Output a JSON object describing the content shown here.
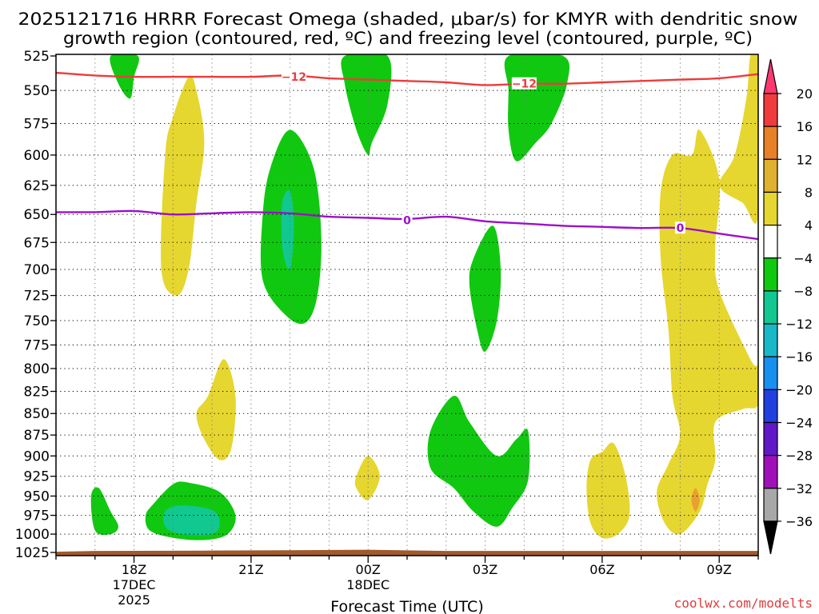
{
  "chart_data": {
    "type": "contour",
    "title_line1": "2025121716 HRRR Forecast Omega (shaded, μbar/s) for KMYR with dendritic snow",
    "title_line2": "growth region (contoured, red, ºC) and freezing level (contoured, purple, ºC)",
    "xlabel": "Forecast Time (UTC)",
    "credit": "coolwx.com/modelts",
    "x_ticks": [
      {
        "hour": 18,
        "label": "18Z",
        "sub1": "17DEC",
        "sub2": "2025"
      },
      {
        "hour": 21,
        "label": "21Z",
        "sub1": "",
        "sub2": ""
      },
      {
        "hour": 24,
        "label": "00Z",
        "sub1": "18DEC",
        "sub2": ""
      },
      {
        "hour": 27,
        "label": "03Z",
        "sub1": "",
        "sub2": ""
      },
      {
        "hour": 30,
        "label": "06Z",
        "sub1": "",
        "sub2": ""
      },
      {
        "hour": 33,
        "label": "09Z",
        "sub1": "",
        "sub2": ""
      }
    ],
    "x_range": [
      16,
      34
    ],
    "pressure_levels": [
      525,
      550,
      575,
      600,
      625,
      650,
      675,
      700,
      725,
      750,
      775,
      800,
      825,
      850,
      875,
      900,
      925,
      950,
      975,
      1000,
      1025
    ],
    "colorbar": {
      "labels": [
        "20",
        "16",
        "12",
        "8",
        "4",
        "−4",
        "−8",
        "−12",
        "−16",
        "−20",
        "−24",
        "−28",
        "−32",
        "−36"
      ],
      "colors": [
        "#ff3870",
        "#f03c3c",
        "#e88028",
        "#e0b030",
        "#e6d630",
        "#ffffff",
        "#10c810",
        "#10c890",
        "#18b8c8",
        "#1890f0",
        "#2040e0",
        "#6018c8",
        "#a010b8",
        "#a8a8a8"
      ]
    },
    "contours": [
      {
        "name": "dendritic -12C",
        "color": "#ec3c3c",
        "label": "−12",
        "points": [
          [
            16,
            537
          ],
          [
            17,
            539
          ],
          [
            18,
            540
          ],
          [
            19,
            540
          ],
          [
            20,
            540
          ],
          [
            21,
            540
          ],
          [
            22,
            539
          ],
          [
            23,
            541
          ],
          [
            24,
            542
          ],
          [
            25,
            543
          ],
          [
            26,
            544
          ],
          [
            27,
            546
          ],
          [
            28,
            545
          ],
          [
            29,
            545
          ],
          [
            30,
            544
          ],
          [
            31,
            543
          ],
          [
            32,
            542
          ],
          [
            33,
            541
          ],
          [
            34,
            538
          ]
        ],
        "label_positions": [
          [
            22.1,
            540
          ],
          [
            28,
            545
          ]
        ]
      },
      {
        "name": "freezing level 0C",
        "color": "#9c10c8",
        "label": "0",
        "points": [
          [
            16,
            648
          ],
          [
            17,
            648
          ],
          [
            18,
            647
          ],
          [
            19,
            650
          ],
          [
            20,
            649
          ],
          [
            21,
            648
          ],
          [
            22,
            649
          ],
          [
            23,
            652
          ],
          [
            24,
            653
          ],
          [
            25,
            654
          ],
          [
            26,
            652
          ],
          [
            27,
            656
          ],
          [
            28,
            658
          ],
          [
            29,
            660
          ],
          [
            30,
            661
          ],
          [
            31,
            662
          ],
          [
            32,
            662
          ],
          [
            33,
            667
          ],
          [
            34,
            672
          ]
        ],
        "label_positions": [
          [
            25,
            655
          ],
          [
            32,
            662
          ]
        ]
      }
    ],
    "regions": [
      {
        "value": 5,
        "color": "#e6d630",
        "points": [
          [
            19.0,
            570
          ],
          [
            19.4,
            540
          ],
          [
            19.6,
            550
          ],
          [
            19.8,
            590
          ],
          [
            19.6,
            640
          ],
          [
            19.4,
            700
          ],
          [
            19.1,
            725
          ],
          [
            18.7,
            700
          ],
          [
            18.8,
            600
          ]
        ]
      },
      {
        "value": 5,
        "color": "#e6d630",
        "points": [
          [
            19.9,
            830
          ],
          [
            20.3,
            790
          ],
          [
            20.6,
            830
          ],
          [
            20.5,
            890
          ],
          [
            20.2,
            905
          ],
          [
            19.8,
            880
          ],
          [
            19.6,
            850
          ]
        ]
      },
      {
        "value": 5,
        "color": "#e6d630",
        "points": [
          [
            23.7,
            925
          ],
          [
            24.0,
            900
          ],
          [
            24.3,
            925
          ],
          [
            24.0,
            955
          ],
          [
            23.7,
            940
          ]
        ]
      },
      {
        "value": 5,
        "color": "#e6d630",
        "points": [
          [
            30.0,
            895
          ],
          [
            30.3,
            885
          ],
          [
            30.6,
            925
          ],
          [
            30.7,
            975
          ],
          [
            30.4,
            1000
          ],
          [
            30.0,
            1005
          ],
          [
            29.7,
            985
          ],
          [
            29.6,
            940
          ],
          [
            29.7,
            905
          ]
        ]
      },
      {
        "value": 5,
        "color": "#e6d630",
        "points": [
          [
            32.3,
            600
          ],
          [
            32.5,
            580
          ],
          [
            33.0,
            620
          ],
          [
            32.9,
            680
          ],
          [
            33.0,
            720
          ],
          [
            33.8,
            790
          ],
          [
            34.0,
            800
          ],
          [
            34.0,
            840
          ],
          [
            33.6,
            845
          ],
          [
            32.9,
            860
          ],
          [
            32.9,
            905
          ],
          [
            32.7,
            935
          ],
          [
            32.5,
            970
          ],
          [
            32.0,
            1000
          ],
          [
            31.6,
            985
          ],
          [
            31.4,
            945
          ],
          [
            31.7,
            910
          ],
          [
            32.0,
            875
          ],
          [
            31.8,
            830
          ],
          [
            31.7,
            760
          ],
          [
            31.5,
            690
          ],
          [
            31.5,
            630
          ],
          [
            31.8,
            600
          ]
        ]
      },
      {
        "value": 5,
        "color": "#e6d630",
        "points": [
          [
            33.0,
            625
          ],
          [
            33.4,
            600
          ],
          [
            33.7,
            555
          ],
          [
            33.8,
            525
          ],
          [
            34.0,
            525
          ],
          [
            34.0,
            650
          ],
          [
            33.6,
            640
          ]
        ]
      },
      {
        "value": -6,
        "color": "#10c810",
        "points": [
          [
            17.4,
            525
          ],
          [
            18.1,
            525
          ],
          [
            18.0,
            540
          ],
          [
            17.9,
            556
          ],
          [
            17.6,
            545
          ]
        ]
      },
      {
        "value": -6,
        "color": "#10c810",
        "points": [
          [
            23.4,
            525
          ],
          [
            24.5,
            525
          ],
          [
            24.5,
            560
          ],
          [
            24.1,
            590
          ],
          [
            24.0,
            600
          ],
          [
            23.7,
            580
          ],
          [
            23.4,
            545
          ]
        ]
      },
      {
        "value": -6,
        "color": "#10c810",
        "points": [
          [
            27.6,
            525
          ],
          [
            29.0,
            525
          ],
          [
            29.1,
            545
          ],
          [
            28.7,
            575
          ],
          [
            28.3,
            590
          ],
          [
            27.8,
            605
          ],
          [
            27.6,
            580
          ],
          [
            27.6,
            550
          ]
        ]
      },
      {
        "value": -6,
        "color": "#10c810",
        "points": [
          [
            21.5,
            610
          ],
          [
            22.0,
            580
          ],
          [
            22.6,
            610
          ],
          [
            22.8,
            670
          ],
          [
            22.7,
            725
          ],
          [
            22.4,
            752
          ],
          [
            21.9,
            745
          ],
          [
            21.3,
            710
          ],
          [
            21.3,
            650
          ]
        ]
      },
      {
        "value": -6,
        "color": "#10c810",
        "points": [
          [
            26.7,
            690
          ],
          [
            27.2,
            660
          ],
          [
            27.4,
            700
          ],
          [
            27.3,
            750
          ],
          [
            27.0,
            782
          ],
          [
            26.8,
            760
          ],
          [
            26.6,
            715
          ]
        ]
      },
      {
        "value": -6,
        "color": "#10c810",
        "points": [
          [
            25.6,
            870
          ],
          [
            26.2,
            830
          ],
          [
            26.6,
            860
          ],
          [
            27.3,
            900
          ],
          [
            27.8,
            880
          ],
          [
            28.1,
            870
          ],
          [
            28.1,
            930
          ],
          [
            27.7,
            965
          ],
          [
            27.3,
            990
          ],
          [
            26.7,
            970
          ],
          [
            26.2,
            940
          ],
          [
            25.6,
            915
          ]
        ]
      },
      {
        "value": -6,
        "color": "#10c810",
        "points": [
          [
            16.9,
            950
          ],
          [
            17.1,
            940
          ],
          [
            17.4,
            970
          ],
          [
            17.6,
            990
          ],
          [
            17.4,
            1000
          ],
          [
            17.0,
            995
          ]
        ]
      },
      {
        "value": -6,
        "color": "#10c810",
        "points": [
          [
            18.5,
            960
          ],
          [
            19.0,
            935
          ],
          [
            19.4,
            933
          ],
          [
            20.2,
            945
          ],
          [
            20.6,
            975
          ],
          [
            20.4,
            1000
          ],
          [
            19.8,
            1008
          ],
          [
            19.0,
            1005
          ],
          [
            18.4,
            995
          ],
          [
            18.3,
            975
          ]
        ]
      },
      {
        "value": -9,
        "color": "#10c890",
        "points": [
          [
            21.8,
            640
          ],
          [
            22.0,
            630
          ],
          [
            22.1,
            660
          ],
          [
            22.0,
            700
          ],
          [
            21.8,
            680
          ]
        ]
      },
      {
        "value": -9,
        "color": "#10c890",
        "points": [
          [
            18.8,
            970
          ],
          [
            19.2,
            962
          ],
          [
            20.0,
            968
          ],
          [
            20.2,
            985
          ],
          [
            20.0,
            1000
          ],
          [
            19.2,
            1000
          ],
          [
            18.8,
            990
          ]
        ]
      },
      {
        "value": 10,
        "color": "#e8a030",
        "points": [
          [
            32.3,
            950
          ],
          [
            32.4,
            940
          ],
          [
            32.5,
            955
          ],
          [
            32.4,
            970
          ],
          [
            32.3,
            960
          ]
        ]
      }
    ],
    "surface": {
      "color": "#a05a2c",
      "pressure": 1023
    }
  }
}
